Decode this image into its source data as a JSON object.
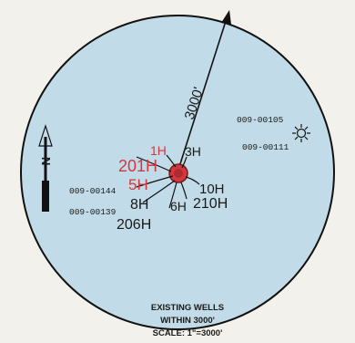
{
  "map": {
    "colors": {
      "circle_fill": "#c2dbe8",
      "circle_stroke": "#111111",
      "red": "#d2383e",
      "ink": "#1a1a1a",
      "background": "#f3f1ec"
    },
    "radius_label": "3000'",
    "well_ids": {
      "left_top": "009-00144",
      "left_bottom": "009-00139",
      "right_top": "009-00105",
      "right_bottom": "009-00111"
    },
    "laterals": {
      "l1H": "1H",
      "l201H": "201H",
      "l3H": "3H",
      "l5H": "5H",
      "l8H": "8H",
      "l206H": "206H",
      "l6H": "6H",
      "l10H": "10H",
      "l210H": "210H"
    },
    "north_letter": "N",
    "caption": {
      "line1": "EXISTING WELLS",
      "line2": "WITHIN 3000'",
      "line3": "SCALE: 1\"=3000'"
    }
  }
}
